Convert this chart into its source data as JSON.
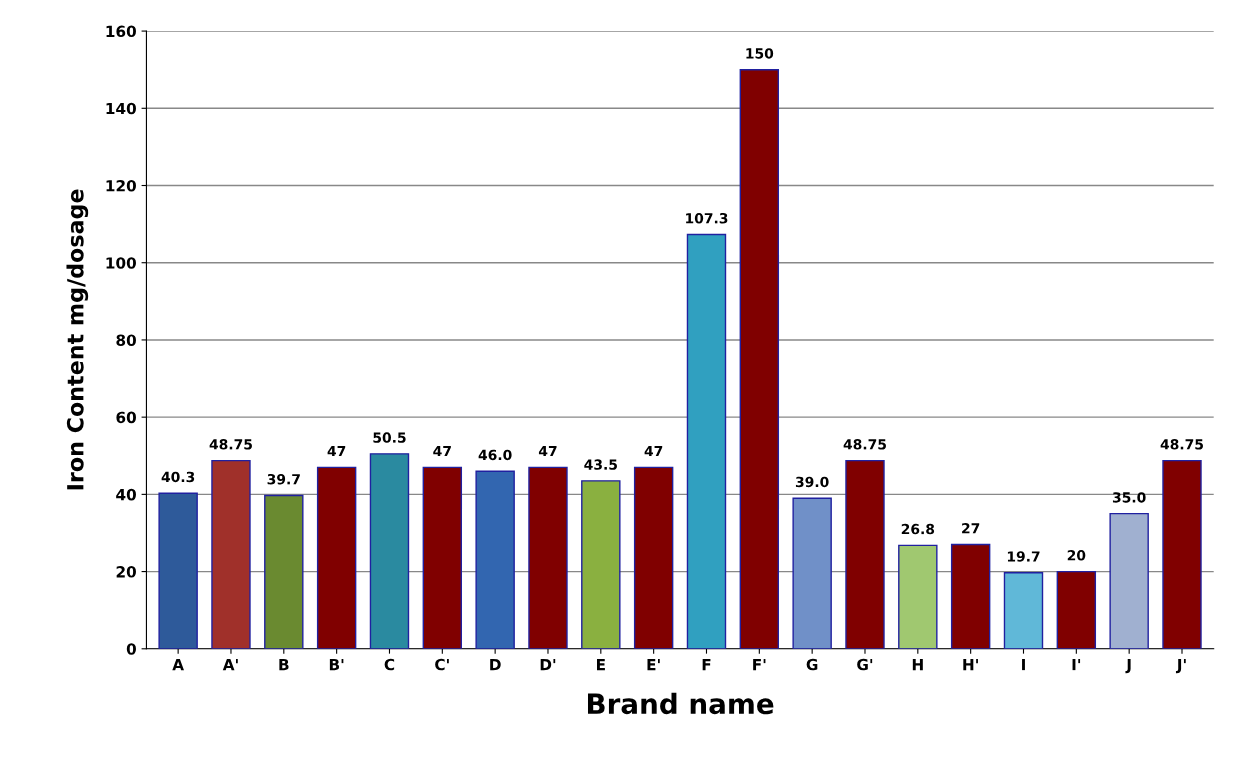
{
  "chart_data": {
    "type": "bar",
    "xlabel": "Brand name",
    "ylabel": "Iron Content mg/dosage",
    "categories": [
      "A",
      "A'",
      "B",
      "B'",
      "C",
      "C'",
      "D",
      "D'",
      "E",
      "E'",
      "F",
      "F'",
      "G",
      "G'",
      "H",
      "H'",
      "I",
      "I'",
      "J",
      "J'"
    ],
    "values": [
      40.3,
      48.75,
      39.7,
      47,
      50.5,
      47,
      46.0,
      47,
      43.5,
      47,
      107.3,
      150,
      39.0,
      48.75,
      26.8,
      27,
      19.7,
      20,
      35.0,
      48.75
    ],
    "value_labels": [
      "40.3",
      "48.75",
      "39.7",
      "47",
      "50.5",
      "47",
      "46.0",
      "47",
      "43.5",
      "47",
      "107.3",
      "150",
      "39.0",
      "48.75",
      "26.8",
      "27",
      "19.7",
      "20",
      "35.0",
      "48.75"
    ],
    "colors": [
      "#2e5a9a",
      "#a0302a",
      "#6a8a30",
      "#800000",
      "#2a8aa0",
      "#800000",
      "#3266b0",
      "#800000",
      "#8ab040",
      "#800000",
      "#30a0c0",
      "#800000",
      "#7090c8",
      "#800000",
      "#a0c870",
      "#800000",
      "#60b8d8",
      "#800000",
      "#a0b0d0",
      "#800000"
    ],
    "ylim": [
      0,
      160
    ],
    "yticks": [
      0,
      20,
      40,
      60,
      80,
      100,
      120,
      140,
      160
    ],
    "grid": "y",
    "legend": false
  }
}
